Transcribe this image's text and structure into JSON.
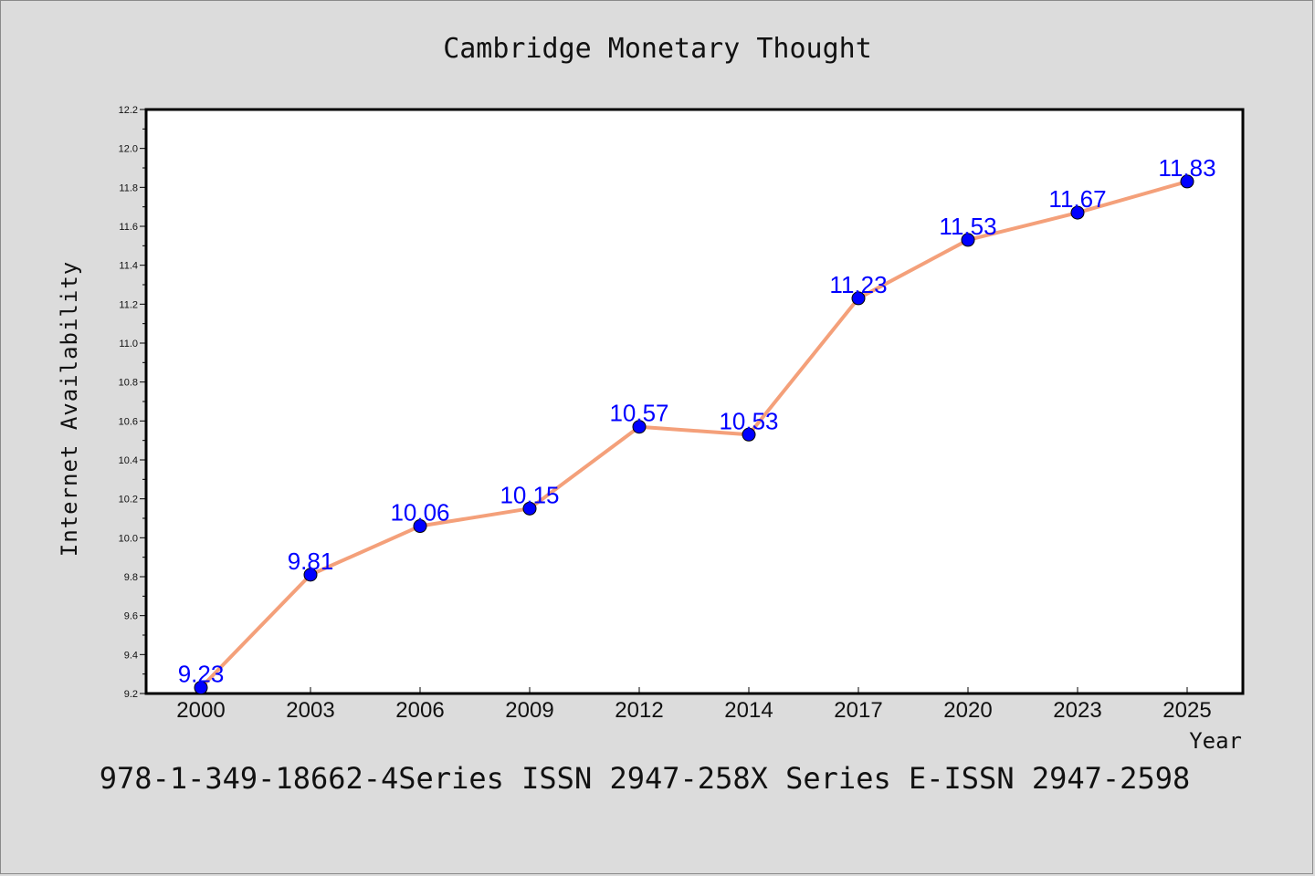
{
  "chart_data": {
    "type": "line",
    "title": "Cambridge Monetary Thought",
    "xlabel": "Year",
    "ylabel": "Internet Availability",
    "categories": [
      "2000",
      "2003",
      "2006",
      "2009",
      "2012",
      "2014",
      "2017",
      "2020",
      "2023",
      "2025"
    ],
    "series": [
      {
        "values": [
          9.23,
          9.81,
          10.06,
          10.15,
          10.57,
          10.53,
          11.23,
          11.53,
          11.67,
          11.83
        ],
        "data_labels": [
          "9.23",
          "9.81",
          "10.06",
          "10.15",
          "10.57",
          "10.53",
          "11.23",
          "11.53",
          "11.67",
          "11.83"
        ]
      }
    ],
    "ylim": [
      9.2,
      12.2
    ],
    "yticks": [
      "9.2",
      "9.4",
      "9.6",
      "9.8",
      "10.0",
      "10.2",
      "10.4",
      "10.6",
      "10.8",
      "11.0",
      "11.2",
      "11.4",
      "11.6",
      "11.8",
      "12.0",
      "12.2"
    ],
    "grid": false,
    "line_color": "#f4a07a",
    "marker_color": "#0000ff",
    "label_color": "#0000ff"
  },
  "footer_text": "978-1-349-18662-4Series ISSN 2947-258X Series E-ISSN 2947-2598"
}
